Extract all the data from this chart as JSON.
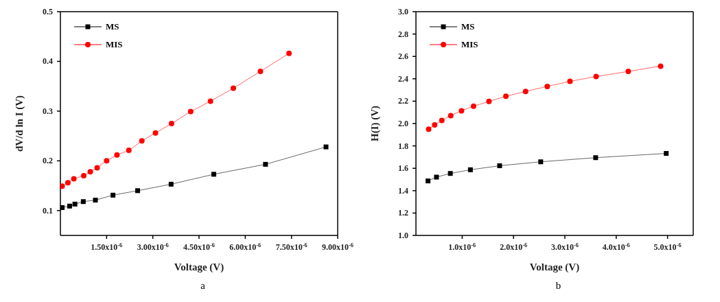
{
  "chart_data": [
    {
      "type": "line",
      "xlabel": "Voltage (V)",
      "ylabel": "dV/d ln I (V)",
      "annotations": [
        "a"
      ],
      "legend": "top left",
      "grid": false,
      "xlim": [
        0,
        9e-06
      ],
      "xticks": [
        {
          "value": 1.5e-06,
          "label": "1.50x10$^{-6}$"
        },
        {
          "value": 3e-06,
          "label": "3.00x10$^{-6}$"
        },
        {
          "value": 4.5e-06,
          "label": "4.50x10$^{-6}$"
        },
        {
          "value": 6e-06,
          "label": "6.00x10$^{-6}$"
        },
        {
          "value": 7.5e-06,
          "label": "7.50x10$^{-6}$"
        },
        {
          "value": 9e-06,
          "label": "9.00x10$^{-6}$"
        }
      ],
      "ylim": [
        0.05,
        0.5
      ],
      "yticks": [
        0.1,
        0.2,
        0.3,
        0.4,
        0.5
      ],
      "series": [
        {
          "name": "MS",
          "color": "#000000",
          "marker": "square",
          "x": [
            5.7e-08,
            3e-07,
            4.71e-07,
            7.43e-07,
            1.136e-06,
            1.707e-06,
            2.507e-06,
            3.593e-06,
            4.979e-06,
            6.657e-06,
            8.621e-06
          ],
          "values": [
            0.106,
            0.109,
            0.113,
            0.118,
            0.121,
            0.131,
            0.14,
            0.153,
            0.173,
            0.193,
            0.228
          ]
        },
        {
          "name": "MIS",
          "color": "#ff0000",
          "marker": "circle",
          "x": [
            5.7e-08,
            2.43e-07,
            4.36e-07,
            7.57e-07,
            9.71e-07,
            1.193e-06,
            1.5e-06,
            1.836e-06,
            2.221e-06,
            2.643e-06,
            3.086e-06,
            3.607e-06,
            4.229e-06,
            4.871e-06,
            5.614e-06,
            6.493e-06,
            7.421e-06
          ],
          "values": [
            0.149,
            0.156,
            0.164,
            0.17,
            0.178,
            0.186,
            0.2,
            0.212,
            0.221,
            0.24,
            0.256,
            0.275,
            0.299,
            0.32,
            0.346,
            0.38,
            0.416
          ]
        }
      ]
    },
    {
      "type": "line",
      "xlabel": "Voltage (V)",
      "ylabel": "H(I) (V)",
      "annotations": [
        "b"
      ],
      "legend": "top left",
      "grid": false,
      "xlim": [
        1e-07,
        5.5e-06
      ],
      "xticks": [
        {
          "value": 1e-06,
          "label": "1.0x10$^{-6}$"
        },
        {
          "value": 2e-06,
          "label": "2.0x10$^{-6}$"
        },
        {
          "value": 3e-06,
          "label": "3.0x10$^{-6}$"
        },
        {
          "value": 4e-06,
          "label": "4.0x10$^{-6}$"
        },
        {
          "value": 5e-06,
          "label": "5.0x10$^{-6}$"
        }
      ],
      "ylim": [
        1.0,
        3.0
      ],
      "yticks": [
        {
          "value": 1.0,
          "label": "1.0"
        },
        1.2,
        1.4,
        1.6,
        1.8,
        {
          "value": 2.0,
          "label": "2.0"
        },
        2.2,
        2.4,
        2.6,
        2.8,
        {
          "value": 3.0,
          "label": "3.0"
        }
      ],
      "series": [
        {
          "name": "MS",
          "color": "#000000",
          "marker": "square",
          "x": [
            3.35e-07,
            5e-07,
            7.7e-07,
            1.161e-06,
            1.73e-06,
            2.53e-06,
            3.6e-06,
            4.974e-06
          ],
          "values": [
            1.487,
            1.521,
            1.554,
            1.587,
            1.623,
            1.658,
            1.695,
            1.733
          ]
        },
        {
          "name": "MIS",
          "color": "#ff0000",
          "marker": "circle",
          "x": [
            3.48e-07,
            4.65e-07,
            6.04e-07,
            7.78e-07,
            9.87e-07,
            1.222e-06,
            1.522e-06,
            1.852e-06,
            2.235e-06,
            2.657e-06,
            3.1e-06,
            3.609e-06,
            4.235e-06,
            4.865e-06
          ],
          "values": [
            1.949,
            1.988,
            2.027,
            2.071,
            2.114,
            2.155,
            2.198,
            2.244,
            2.287,
            2.332,
            2.377,
            2.42,
            2.466,
            2.513
          ]
        }
      ]
    }
  ]
}
